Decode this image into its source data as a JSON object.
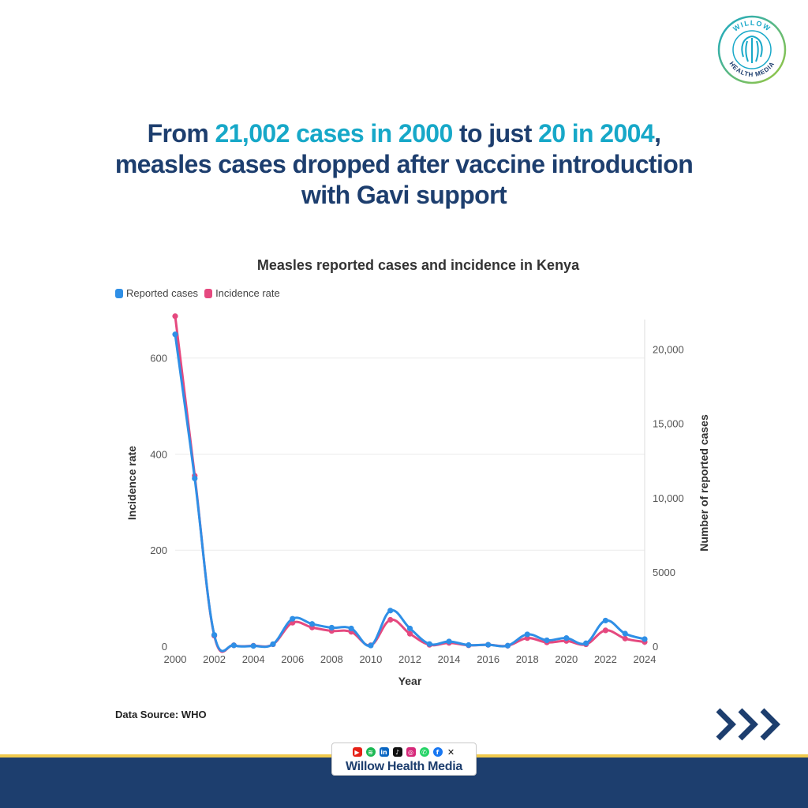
{
  "headline": {
    "part1": "From ",
    "hl1": "21,002 cases in 2000",
    "part2": " to just ",
    "hl2": "20 in 2004",
    "part3": ",",
    "line2": "measles cases dropped after vaccine introduction",
    "line3": "with Gavi support"
  },
  "logo": {
    "text_top": "WILLOW",
    "text_bottom": "HEALTH MEDIA"
  },
  "source": "Data Source: WHO",
  "footer": {
    "brand": "Willow Health Media"
  },
  "social_icons": [
    "youtube-icon",
    "spotify-icon",
    "linkedin-icon",
    "tiktok-icon",
    "instagram-icon",
    "whatsapp-icon",
    "facebook-icon",
    "x-icon"
  ],
  "colors": {
    "navy": "#1d3e6e",
    "accent": "#17a8c8",
    "reported": "#2f8fe6",
    "incidence": "#e5497f",
    "gold": "#f0c94c"
  },
  "chart_data": {
    "type": "line",
    "title": "Measles reported cases and incidence in Kenya",
    "xlabel": "Year",
    "ylabel_left": "Incidence rate",
    "ylabel_right": "Number of reported cases",
    "legend_position": "top-left",
    "grid": true,
    "x": [
      2000,
      2001,
      2002,
      2003,
      2004,
      2005,
      2006,
      2007,
      2008,
      2009,
      2010,
      2011,
      2012,
      2013,
      2014,
      2015,
      2016,
      2017,
      2018,
      2019,
      2020,
      2021,
      2022,
      2023,
      2024
    ],
    "x_ticks": [
      "2000",
      "2002",
      "2004",
      "2006",
      "2008",
      "2010",
      "2012",
      "2014",
      "2016",
      "2018",
      "2020",
      "2022",
      "2024"
    ],
    "ylim_left": [
      0,
      680
    ],
    "ylim_right": [
      0,
      22000
    ],
    "y_ticks_left": [
      "0",
      "200",
      "400",
      "600"
    ],
    "y_ticks_right": [
      "0",
      "5000",
      "10,000",
      "15,000",
      "20,000"
    ],
    "series": [
      {
        "name": "Reported cases",
        "axis": "right",
        "values": [
          21002,
          11300,
          760,
          60,
          20,
          140,
          1850,
          1500,
          1250,
          1200,
          50,
          2400,
          1200,
          150,
          320,
          80,
          100,
          40,
          800,
          400,
          550,
          200,
          1730,
          850,
          480
        ]
      },
      {
        "name": "Incidence rate",
        "axis": "left",
        "values": [
          687,
          355,
          22,
          2,
          1,
          4,
          49,
          39,
          32,
          30,
          2,
          55,
          26,
          3,
          7,
          2,
          3,
          1,
          17,
          8,
          11,
          4,
          33,
          16,
          9
        ]
      }
    ]
  }
}
